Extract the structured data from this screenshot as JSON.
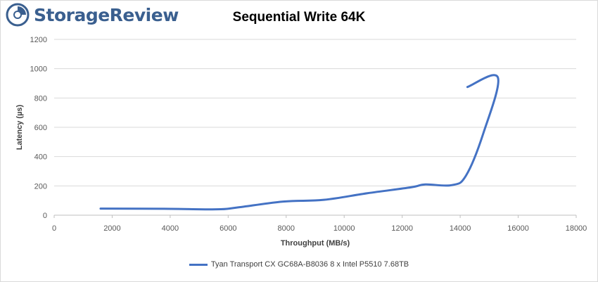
{
  "brand": {
    "name": "StorageReview",
    "logo_icon": "storagereview-logo-icon",
    "colors": {
      "brand": "#3a5f8f",
      "series": "#4472c4",
      "grid": "#d9d9d9",
      "axis_text": "#595959"
    }
  },
  "chart_data": {
    "type": "line",
    "title": "Sequential Write 64K",
    "xlabel": "Throughput (MB/s)",
    "ylabel": "Latency (µs)",
    "xlim": [
      0,
      18000
    ],
    "ylim": [
      0,
      1200
    ],
    "xticks": [
      0,
      2000,
      4000,
      6000,
      8000,
      10000,
      12000,
      14000,
      16000,
      18000
    ],
    "yticks": [
      0,
      200,
      400,
      600,
      800,
      1000,
      1200
    ],
    "grid": "horizontal",
    "legend_position": "bottom",
    "series": [
      {
        "name": "Tyan Transport CX GC68A-B8036 8 x Intel P5510 7.68TB",
        "color": "#4472c4",
        "x": [
          1600,
          3800,
          5600,
          6300,
          7900,
          9300,
          10800,
          12300,
          12800,
          13700,
          14200,
          14800,
          15300,
          14250
        ],
        "y": [
          45,
          44,
          40,
          52,
          93,
          105,
          150,
          190,
          210,
          205,
          270,
          560,
          940,
          875
        ]
      }
    ]
  }
}
